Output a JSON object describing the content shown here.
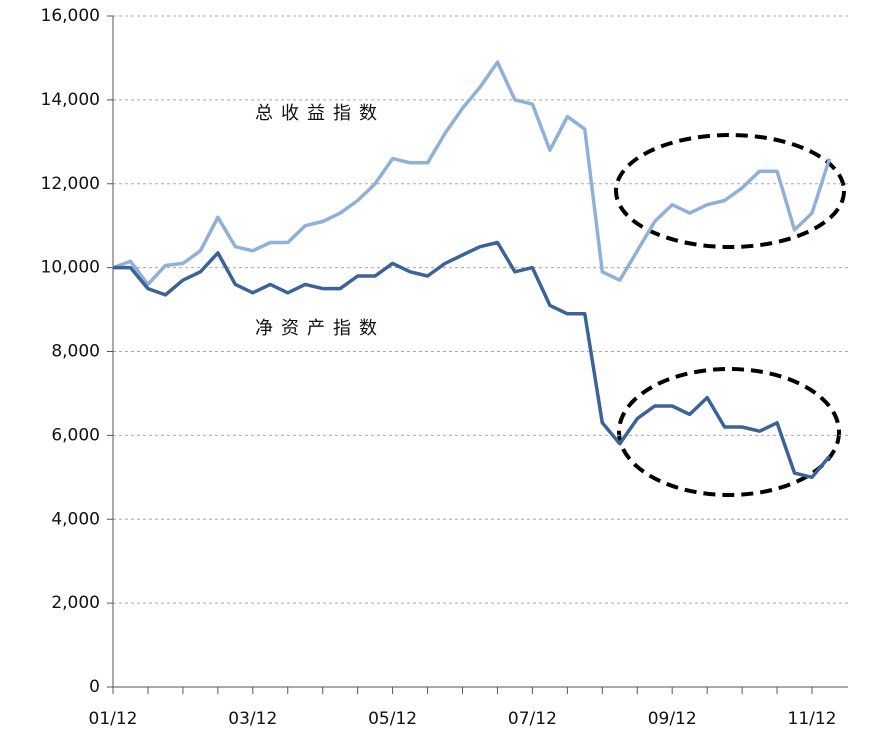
{
  "chart_data": {
    "type": "line",
    "annotations": [
      "总收益指数",
      "净资产指数"
    ],
    "categories": [
      "01/12",
      null,
      null,
      null,
      null,
      null,
      null,
      null,
      "03/12",
      null,
      null,
      null,
      null,
      null,
      null,
      null,
      "05/12",
      null,
      null,
      null,
      null,
      null,
      null,
      null,
      "07/12",
      null,
      null,
      null,
      null,
      null,
      null,
      null,
      "09/12",
      null,
      null,
      null,
      null,
      null,
      null,
      null,
      "11/12",
      null
    ],
    "series": [
      {
        "name": "总收益指数",
        "color": "#8fb0d8",
        "values": [
          10000,
          10150,
          9600,
          10050,
          10100,
          10400,
          11200,
          10500,
          10400,
          10600,
          10600,
          11000,
          11100,
          11300,
          11600,
          12000,
          12600,
          12500,
          12500,
          13200,
          13800,
          14300,
          14900,
          14000,
          13900,
          12800,
          13600,
          13300,
          9900,
          9700,
          10400,
          11100,
          11500,
          11300,
          11500,
          11600,
          11900,
          12300,
          12300,
          10900,
          11300,
          12600
        ]
      },
      {
        "name": "净资产指数",
        "color": "#3a6499",
        "values": [
          10000,
          10000,
          9500,
          9350,
          9700,
          9900,
          10350,
          9600,
          9400,
          9600,
          9400,
          9600,
          9500,
          9500,
          9800,
          9800,
          10100,
          9900,
          9800,
          10100,
          10300,
          10500,
          10600,
          9900,
          10000,
          9100,
          8900,
          8900,
          6300,
          5800,
          6400,
          6700,
          6700,
          6500,
          6900,
          6200,
          6200,
          6100,
          6300,
          5100,
          5000,
          5500
        ]
      }
    ],
    "ylim": [
      0,
      16000
    ],
    "yticks": [
      0,
      {
        "value": 2000,
        "label": "2,000"
      },
      {
        "value": 4000,
        "label": "4,000"
      },
      {
        "value": 6000,
        "label": "6,000"
      },
      {
        "value": 8000,
        "label": "8,000"
      },
      {
        "value": 10000,
        "label": "10,000"
      },
      {
        "value": 12000,
        "label": "12,000"
      },
      {
        "value": 14000,
        "label": "14,000"
      },
      {
        "value": 16000,
        "label": "16,000"
      }
    ],
    "grid": true
  }
}
